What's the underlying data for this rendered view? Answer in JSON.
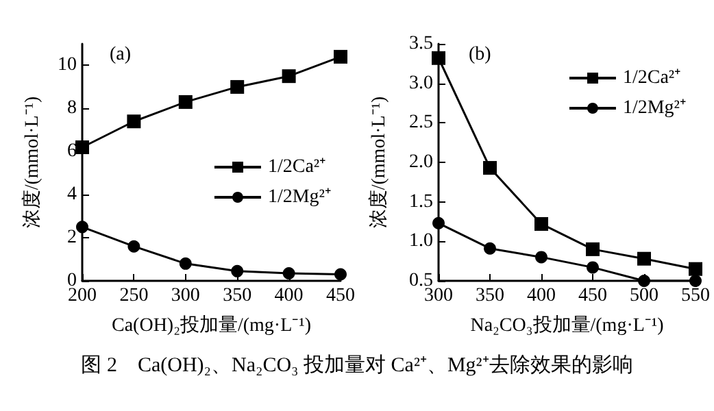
{
  "chart_data": [
    {
      "type": "line",
      "title": "(a)",
      "xlabel": "Ca(OH)₂投加量/(mg·L⁻¹)",
      "ylabel": "浓度/(mmol·L⁻¹)",
      "x": [
        200,
        250,
        300,
        350,
        400,
        450
      ],
      "series": [
        {
          "name": "1/2Ca²⁺",
          "color": "#000000",
          "marker": "square",
          "values": [
            6.2,
            7.4,
            8.3,
            9.0,
            9.5,
            10.4
          ]
        },
        {
          "name": "1/2Mg²⁺",
          "color": "#000000",
          "marker": "circle",
          "values": [
            2.5,
            1.6,
            0.8,
            0.45,
            0.35,
            0.3
          ]
        }
      ],
      "xlim": [
        200,
        450
      ],
      "xticks": [
        200,
        250,
        300,
        350,
        400,
        450
      ],
      "ylim": [
        0,
        11
      ],
      "yticks": [
        0,
        2,
        4,
        6,
        8,
        10
      ],
      "grid": false,
      "legend": "right",
      "line_style": "solid",
      "annotations": [
        "图 2　Ca(OH)₂、Na₂CO₃ 投加量对 Ca²⁺、Mg²⁺去除效果的影响"
      ]
    },
    {
      "type": "line",
      "title": "(b)",
      "xlabel": "Na₂CO₃投加量/(mg·L⁻¹)",
      "ylabel": "浓度/(mmol·L⁻¹)",
      "x": [
        300,
        350,
        400,
        450,
        500,
        550
      ],
      "series": [
        {
          "name": "1/2Ca²⁺",
          "color": "#000000",
          "marker": "square",
          "values": [
            3.32,
            1.93,
            1.22,
            0.9,
            0.78,
            0.65
          ]
        },
        {
          "name": "1/2Mg²⁺",
          "color": "#000000",
          "marker": "circle",
          "values": [
            1.23,
            0.91,
            0.8,
            0.67,
            0.5,
            0.5
          ]
        }
      ],
      "xlim": [
        300,
        550
      ],
      "xticks": [
        300,
        350,
        400,
        450,
        500,
        550
      ],
      "ylim": [
        0.5,
        3.5
      ],
      "yticks": [
        0.5,
        {
          "value": 1,
          "label": "1.0"
        },
        1.5,
        {
          "value": 2,
          "label": "2.0"
        },
        2.5,
        {
          "value": 3,
          "label": "3.0"
        },
        3.5
      ],
      "grid": false,
      "legend": "top right",
      "line_style": "solid"
    }
  ]
}
